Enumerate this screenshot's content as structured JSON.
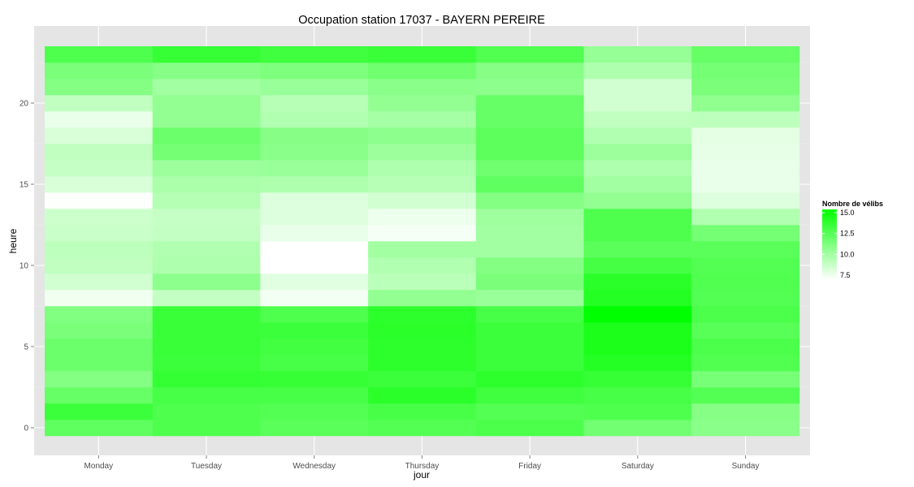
{
  "chart_data": {
    "type": "heatmap",
    "title": "Occupation station 17037 - BAYERN PEREIRE",
    "xlabel": "jour",
    "ylabel": "heure",
    "categories": [
      "Monday",
      "Tuesday",
      "Wednesday",
      "Thursday",
      "Friday",
      "Saturday",
      "Sunday"
    ],
    "hours": [
      0,
      1,
      2,
      3,
      4,
      5,
      6,
      7,
      8,
      9,
      10,
      11,
      12,
      13,
      14,
      15,
      16,
      17,
      18,
      19,
      20,
      21,
      22,
      23
    ],
    "ylim": [
      -0.5,
      23.5
    ],
    "y_ticks": [
      0,
      5,
      10,
      15,
      20
    ],
    "grid": true,
    "color_scale": {
      "low": "#ffffff",
      "high": "#00ff00",
      "min": 6.9,
      "max": 15.4
    },
    "legend": {
      "title": "Nombre de vélibs",
      "position": "right",
      "breaks": [
        7.5,
        10.0,
        12.5,
        15.0
      ],
      "labels": [
        "7.5",
        "10.0",
        "12.5",
        "15.0"
      ]
    },
    "values": {
      "Monday": [
        12.2,
        13.4,
        12.0,
        11.0,
        11.8,
        11.8,
        11.3,
        11.1,
        7.4,
        8.4,
        9.0,
        9.1,
        8.7,
        8.6,
        7.0,
        8.2,
        8.8,
        9.0,
        8.2,
        7.6,
        9.0,
        11.0,
        11.3,
        12.8
      ],
      "Tuesday": [
        12.8,
        12.8,
        13.0,
        13.7,
        13.4,
        13.5,
        13.5,
        13.5,
        8.9,
        10.7,
        9.6,
        9.5,
        8.9,
        8.8,
        9.4,
        9.7,
        10.2,
        11.5,
        11.8,
        10.5,
        10.5,
        10.0,
        10.9,
        13.6
      ],
      "Wednesday": [
        12.4,
        12.6,
        13.0,
        13.6,
        13.0,
        13.2,
        13.4,
        12.8,
        7.3,
        7.9,
        6.9,
        6.9,
        7.6,
        8.0,
        8.0,
        9.6,
        10.3,
        10.8,
        10.9,
        9.5,
        9.3,
        10.3,
        11.2,
        13.3
      ],
      "Thursday": [
        12.6,
        13.0,
        14.0,
        13.4,
        13.9,
        13.9,
        14.0,
        13.9,
        10.5,
        9.2,
        9.5,
        10.0,
        7.2,
        7.5,
        8.4,
        9.3,
        9.6,
        10.2,
        10.7,
        9.9,
        10.5,
        10.8,
        11.7,
        13.5
      ],
      "Friday": [
        12.9,
        12.6,
        13.3,
        13.9,
        13.4,
        13.4,
        13.4,
        13.0,
        10.3,
        11.3,
        11.0,
        10.0,
        10.0,
        10.1,
        11.0,
        12.2,
        11.7,
        12.3,
        12.3,
        12.0,
        12.0,
        10.7,
        10.9,
        12.7
      ],
      "Saturday": [
        11.6,
        12.8,
        13.0,
        13.6,
        14.2,
        14.5,
        14.5,
        15.4,
        14.2,
        14.0,
        13.1,
        12.4,
        12.8,
        12.8,
        10.5,
        10.0,
        9.6,
        10.2,
        9.5,
        9.0,
        8.4,
        8.4,
        9.6,
        10.4
      ],
      "Sunday": [
        10.8,
        10.9,
        12.6,
        11.4,
        12.7,
        12.9,
        12.5,
        12.9,
        12.6,
        12.7,
        12.6,
        12.4,
        11.5,
        9.5,
        8.0,
        7.6,
        7.6,
        7.7,
        7.8,
        9.1,
        10.6,
        11.3,
        11.5,
        12.0
      ]
    }
  }
}
